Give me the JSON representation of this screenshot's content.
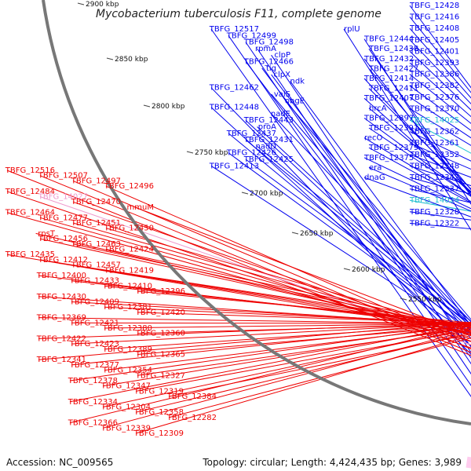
{
  "title": "Mycobacterium tuberculosis F11, complete genome",
  "accession": "Accession: NC_009565",
  "topology": "Topology: circular; Length: 4,424,435 bp; Genes: 3,989",
  "colors": {
    "forward": "#0000ee",
    "reverse": "#ee0000",
    "rna": "#ee99cc",
    "trna": "#22c0d0",
    "backbone": "#777777",
    "tick": "#1a9a1a"
  },
  "ticks": [
    "2900 kbp",
    "2850 kbp",
    "2800 kbp",
    "2750 kbp",
    "2700 kbp",
    "2650 kbp",
    "2600 kbp",
    "2550 kbp"
  ],
  "labels_blue": [
    "TBFG_12428",
    "TBFG_12416",
    "TBFG_12408",
    "TBFG_12405",
    "TBFG_12401",
    "TBFG_12393",
    "TBFG_12386",
    "TBFG_12382",
    "TBFG_12376",
    "TBFG_12370",
    "TBFG_14025",
    "TBFG_12362",
    "TBFG_12361",
    "TBFG_12352",
    "TBFG_12348",
    "TBFG_12342",
    "TBFG_12337",
    "TBFG_14024",
    "TBFG_12328",
    "TBFG_12322",
    "rplU",
    "TBFG_12444",
    "TBFG_12438",
    "TBFG_12432",
    "TBFG_12427",
    "TBFG_12414",
    "TBFG_12411",
    "TBFG_12407",
    "hrcA",
    "TBFG_12397",
    "TBFG_12391",
    "recO",
    "TBFG_12379",
    "TBFG_12375",
    "era",
    "dnaG",
    "TBFG_12517",
    "TBFG_12499",
    "TBFG_12498",
    "rpmA",
    "clpP",
    "TBFG_12466",
    "tig",
    "clpX",
    "ndk",
    "TBFG_12462",
    "valS",
    "obgE",
    "TBFG_12448",
    "nadE",
    "TBFG_12443",
    "proA",
    "TBFG_12437",
    "TBFG_12431",
    "nadD",
    "TBFG_12426",
    "TBFG_12425",
    "TBFG_12413"
  ],
  "labels_red": [
    "TBFG_12516",
    "TBFG_12507",
    "TBFG_12497",
    "TBFG_12496",
    "TBFG_12484",
    "TBFG_14027",
    "TBFG_12470",
    "mmuM",
    "TBFG_12464",
    "TBFG_12477",
    "TBFG_12451",
    "TBFG_12450",
    "rpsT",
    "TBFG_12456",
    "TBFG_12463",
    "TBFG_12424",
    "TBFG_12435",
    "TBFG_12412",
    "TBFG_12457",
    "TBFG_12419",
    "TBFG_12400",
    "TBFG_12433",
    "TBFG_12410",
    "TBFG_12396",
    "TBFG_12430",
    "TBFG_12409",
    "TBFG_12381",
    "TBFG_12420",
    "TBFG_12369",
    "TBFG_12421",
    "TBFG_12380",
    "TBFG_12360",
    "TBFG_12422",
    "TBFG_12423",
    "TBFG_12389",
    "TBFG_12365",
    "TBFG_12341",
    "TBFG_12377",
    "TBFG_12354",
    "TBFG_12327",
    "TBFG_12378",
    "TBFG_12347",
    "TBFG_12319",
    "TBFG_12384",
    "TBFG_12334",
    "TBFG_12304",
    "TBFG_12358",
    "TBFG_12282",
    "TBFG_12366",
    "TBFG_12339",
    "TBFG_12309"
  ]
}
